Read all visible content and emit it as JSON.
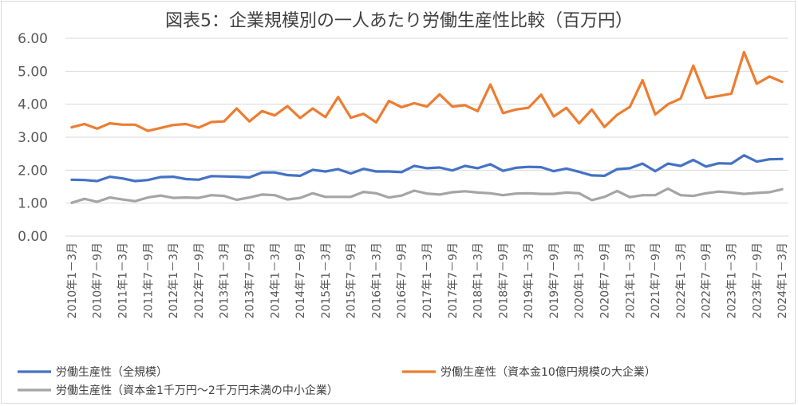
{
  "chart_data": {
    "type": "line",
    "title": "図表5：企業規模別の一人あたり労働生産性比較（百万円）",
    "ylim": [
      0,
      6
    ],
    "yticks": [
      "0.00",
      "1.00",
      "2.00",
      "3.00",
      "4.00",
      "5.00",
      "6.00"
    ],
    "grid": "horizontal",
    "legend_position": "bottom",
    "x": [
      "2010年1-3月",
      "2010年4-6月",
      "2010年7-9月",
      "2010年10-12月",
      "2011年1-3月",
      "2011年4-6月",
      "2011年7-9月",
      "2011年10-12月",
      "2012年1-3月",
      "2012年4-6月",
      "2012年7-9月",
      "2012年10-12月",
      "2013年1-3月",
      "2013年4-6月",
      "2013年7-9月",
      "2013年10-12月",
      "2014年1-3月",
      "2014年4-6月",
      "2014年7-9月",
      "2014年10-12月",
      "2015年1-3月",
      "2015年4-6月",
      "2015年7-9月",
      "2015年10-12月",
      "2016年1-3月",
      "2016年4-6月",
      "2016年7-9月",
      "2016年10-12月",
      "2017年1-3月",
      "2017年4-6月",
      "2017年7-9月",
      "2017年10-12月",
      "2018年1-3月",
      "2018年4-6月",
      "2018年7-9月",
      "2018年10-12月",
      "2019年1-3月",
      "2019年4-6月",
      "2019年7-9月",
      "2019年10-12月",
      "2020年1-3月",
      "2020年4-6月",
      "2020年7-9月",
      "2020年10-12月",
      "2021年1-3月",
      "2021年4-6月",
      "2021年7-9月",
      "2021年10-12月",
      "2022年1-3月",
      "2022年4-6月",
      "2022年7-9月",
      "2022年10-12月",
      "2023年1-3月",
      "2023年4-6月",
      "2023年7-9月",
      "2023年10-12月",
      "2024年1-3月"
    ],
    "tick_labels": [
      "2010年1－3月",
      "2010年7－9月",
      "2011年1－3月",
      "2011年7－9月",
      "2012年1－3月",
      "2012年7－9月",
      "2013年1－3月",
      "2013年7－9月",
      "2014年1－3月",
      "2014年7－9月",
      "2015年1－3月",
      "2015年7－9月",
      "2016年1－3月",
      "2016年7－9月",
      "2017年1－3月",
      "2017年7－9月",
      "2018年1－3月",
      "2018年7－9月",
      "2019年1－3月",
      "2019年7－9月",
      "2020年1－3月",
      "2020年7－9月",
      "2021年1－3月",
      "2021年7－9月",
      "2022年1－3月",
      "2022年7－9月",
      "2023年1－3月",
      "2023年7－9月",
      "2024年1－3月"
    ],
    "series": [
      {
        "name": "労働生産性（全規模）",
        "color": "#4472c4",
        "values": [
          1.71,
          1.7,
          1.67,
          1.8,
          1.75,
          1.67,
          1.7,
          1.79,
          1.8,
          1.73,
          1.71,
          1.82,
          1.81,
          1.8,
          1.78,
          1.93,
          1.93,
          1.85,
          1.83,
          2.01,
          1.96,
          2.03,
          1.9,
          2.04,
          1.96,
          1.96,
          1.94,
          2.13,
          2.06,
          2.08,
          1.99,
          2.13,
          2.06,
          2.18,
          1.98,
          2.07,
          2.1,
          2.09,
          1.97,
          2.05,
          1.95,
          1.84,
          1.83,
          2.03,
          2.06,
          2.2,
          1.97,
          2.2,
          2.13,
          2.31,
          2.11,
          2.21,
          2.2,
          2.45,
          2.26,
          2.33,
          2.34
        ]
      },
      {
        "name": "労働生産性（資本金10億円規模の大企業）",
        "color": "#ed7d31",
        "values": [
          3.3,
          3.4,
          3.26,
          3.42,
          3.38,
          3.38,
          3.19,
          3.28,
          3.37,
          3.4,
          3.29,
          3.46,
          3.48,
          3.87,
          3.48,
          3.79,
          3.66,
          3.94,
          3.58,
          3.87,
          3.61,
          4.22,
          3.59,
          3.71,
          3.45,
          4.1,
          3.91,
          4.03,
          3.93,
          4.3,
          3.93,
          3.97,
          3.79,
          4.6,
          3.73,
          3.84,
          3.89,
          4.29,
          3.63,
          3.89,
          3.42,
          3.84,
          3.31,
          3.68,
          3.92,
          4.73,
          3.69,
          4.0,
          4.17,
          5.17,
          4.19,
          4.25,
          4.32,
          5.58,
          4.62,
          4.84,
          4.68
        ]
      },
      {
        "name": "労働生産性（資本金1千万円～2千万円未満の中小企業）",
        "color": "#a5a5a5",
        "values": [
          1.01,
          1.13,
          1.04,
          1.17,
          1.11,
          1.06,
          1.17,
          1.23,
          1.16,
          1.17,
          1.16,
          1.24,
          1.22,
          1.1,
          1.17,
          1.26,
          1.24,
          1.11,
          1.16,
          1.3,
          1.19,
          1.19,
          1.19,
          1.34,
          1.3,
          1.17,
          1.23,
          1.38,
          1.29,
          1.26,
          1.33,
          1.36,
          1.32,
          1.3,
          1.24,
          1.29,
          1.3,
          1.28,
          1.28,
          1.32,
          1.3,
          1.09,
          1.19,
          1.37,
          1.18,
          1.24,
          1.24,
          1.44,
          1.24,
          1.22,
          1.3,
          1.35,
          1.32,
          1.28,
          1.31,
          1.33,
          1.42
        ]
      }
    ]
  }
}
